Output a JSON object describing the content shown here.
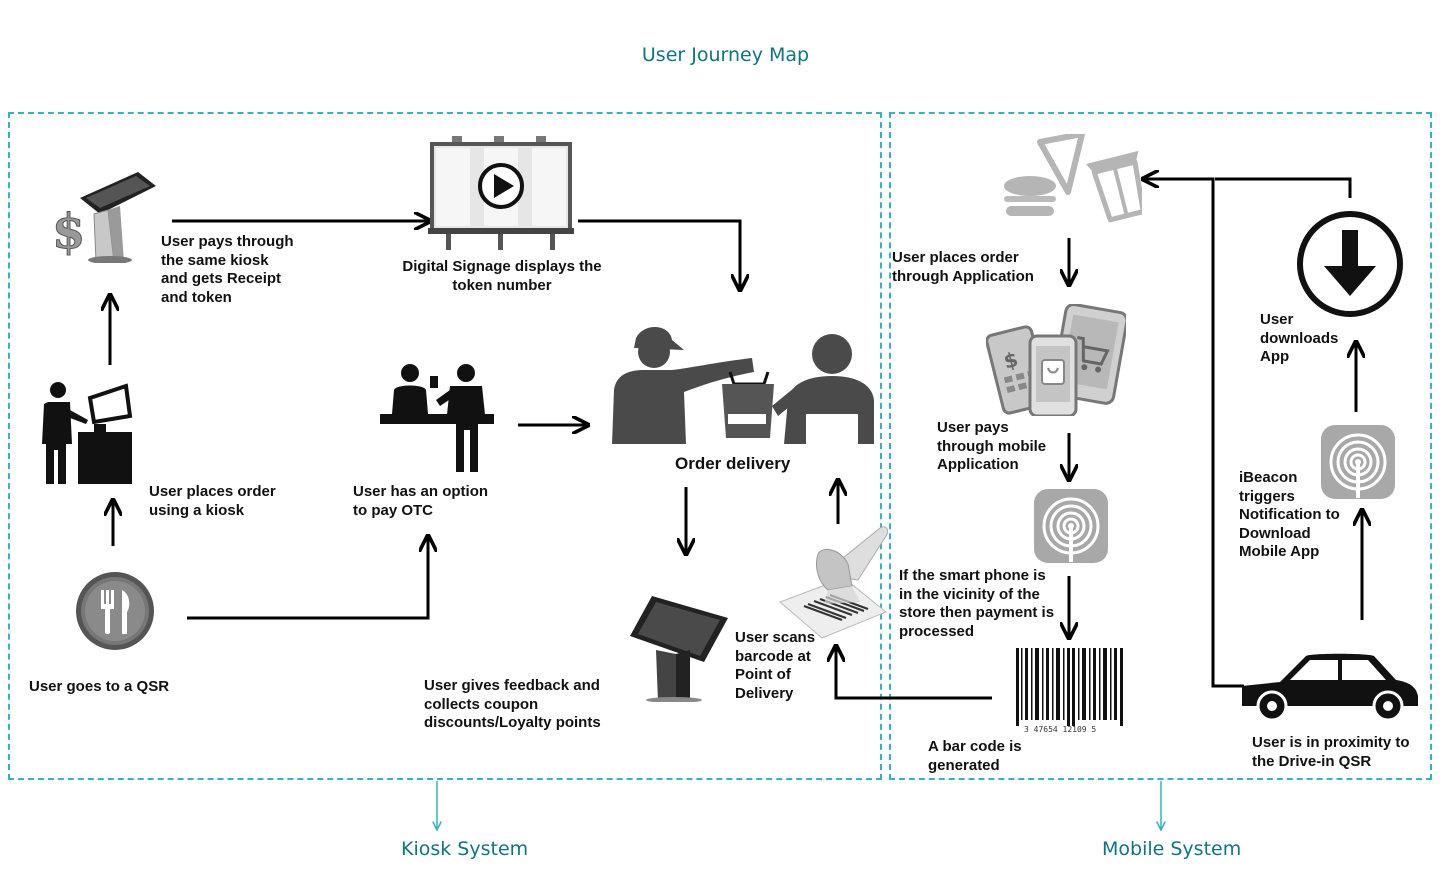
{
  "title": "User Journey Map",
  "systems": {
    "kiosk": "Kiosk System",
    "mobile": "Mobile System"
  },
  "kiosk_steps": {
    "goes_to_qsr": "User goes to a QSR",
    "places_order_kiosk": "User places order\nusing a kiosk",
    "pays_kiosk": "User pays through\nthe same kiosk\nand gets Receipt\nand token",
    "signage": "Digital Signage displays the\ntoken number",
    "pay_otc": "User has an option\nto pay OTC",
    "order_delivery": "Order delivery",
    "feedback": "User gives feedback and\ncollects coupon\ndiscounts/Loyalty points",
    "scans_barcode": "User scans\nbarcode at\nPoint of\nDelivery"
  },
  "mobile_steps": {
    "places_order_app": "User places order\nthrough Application",
    "pays_mobile": "User pays\nthrough mobile\nApplication",
    "payment_processed": "If the smart phone is\nin the vicinity of the\nstore then payment is\nprocessed",
    "barcode_generated": "A bar code is\ngenerated",
    "proximity": "User is in proximity to\nthe Drive-in QSR",
    "ibeacon": "iBeacon\ntriggers\nNotification to\nDownload\nMobile App",
    "downloads_app": "User\ndownloads\nApp"
  },
  "colors": {
    "accent": "#0e7480",
    "frame": "#33b3c3"
  },
  "icons": {
    "qsr": "fork-knife-icon",
    "kiosk_user": "person-at-kiosk-icon",
    "pay_kiosk": "payment-kiosk-icon",
    "signage": "billboard-play-icon",
    "otc": "counter-service-icon",
    "delivery": "delivery-handover-icon",
    "feedback_kiosk": "feedback-kiosk-icon",
    "scanner": "barcode-scanner-icon",
    "food": "food-icons",
    "mobile_pay": "mobile-payment-icon",
    "ibeacon": "ibeacon-icon",
    "barcode": "barcode-icon",
    "car": "car-icon",
    "download": "download-icon"
  }
}
